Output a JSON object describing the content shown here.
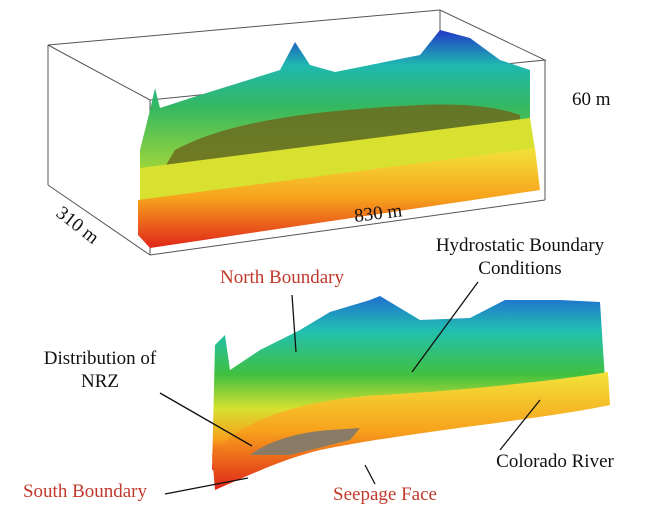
{
  "dimensions": {
    "height": "60 m",
    "length": "830 m",
    "width": "310 m"
  },
  "labels": {
    "north_boundary": "North Boundary",
    "hydrostatic": [
      "Hydrostatic Boundary",
      "Conditions"
    ],
    "nrz": [
      "Distribution of",
      "NRZ"
    ],
    "south_boundary": "South Boundary",
    "seepage_face": "Seepage Face",
    "colorado_river": "Colorado River"
  }
}
